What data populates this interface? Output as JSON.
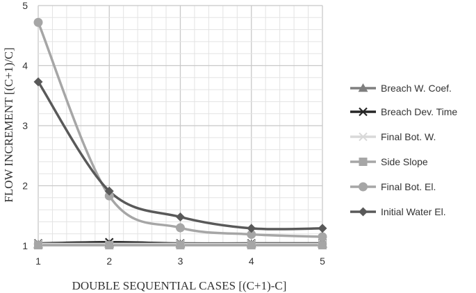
{
  "chart_data": {
    "type": "line",
    "title": "",
    "xlabel": "DOUBLE SEQUENTIAL CASES  [(C+1)-C]",
    "ylabel": "FLOW INCREMENT [(C+1)/C]",
    "x": [
      1,
      2,
      3,
      4,
      5
    ],
    "xticks": [
      "1",
      "2",
      "3",
      "4",
      "5"
    ],
    "yticks": [
      "1",
      "2",
      "3",
      "4",
      "5"
    ],
    "ylim": [
      1,
      5
    ],
    "grid": true,
    "legend_position": "right",
    "series": [
      {
        "name": "Breach W. Coef.",
        "values": [
          1.02,
          1.03,
          1.03,
          1.03,
          1.03
        ],
        "color": "#7f7f7f",
        "marker": "triangle"
      },
      {
        "name": "Breach Dev. Time",
        "values": [
          1.04,
          1.06,
          1.04,
          1.04,
          1.04
        ],
        "color": "#262626",
        "marker": "x"
      },
      {
        "name": "Final Bot. W.",
        "values": [
          1.03,
          1.03,
          1.03,
          1.03,
          1.03
        ],
        "color": "#d9d9d9",
        "marker": "star"
      },
      {
        "name": "Side Slope",
        "values": [
          1.01,
          1.01,
          1.01,
          1.01,
          1.01
        ],
        "color": "#a6a6a6",
        "marker": "square"
      },
      {
        "name": "Final Bot. El.",
        "values": [
          4.72,
          1.83,
          1.3,
          1.19,
          1.15
        ],
        "color": "#a6a6a6",
        "marker": "circle"
      },
      {
        "name": "Initial Water El.",
        "values": [
          3.73,
          1.91,
          1.48,
          1.29,
          1.29
        ],
        "color": "#595959",
        "marker": "diamond"
      }
    ]
  }
}
